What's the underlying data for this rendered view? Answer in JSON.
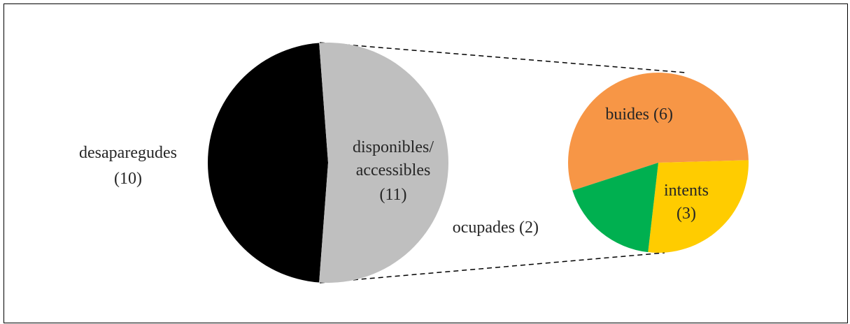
{
  "chart_data": {
    "type": "pie_of_pie",
    "categories": [
      "desaparegudes",
      "disponibles/accessibles"
    ],
    "values": [
      10,
      11
    ],
    "value_labels": [
      "(10)",
      "(11)"
    ],
    "colors": [
      "#000000",
      "#bfbfbf"
    ],
    "secondary": {
      "categories": [
        "buides",
        "intents",
        "ocupades"
      ],
      "values": [
        6,
        3,
        2
      ],
      "value_labels": [
        "(6)",
        "(3)",
        "(2)"
      ],
      "colors": [
        "#f79646",
        "#ffcc00",
        "#00b050"
      ]
    }
  }
}
